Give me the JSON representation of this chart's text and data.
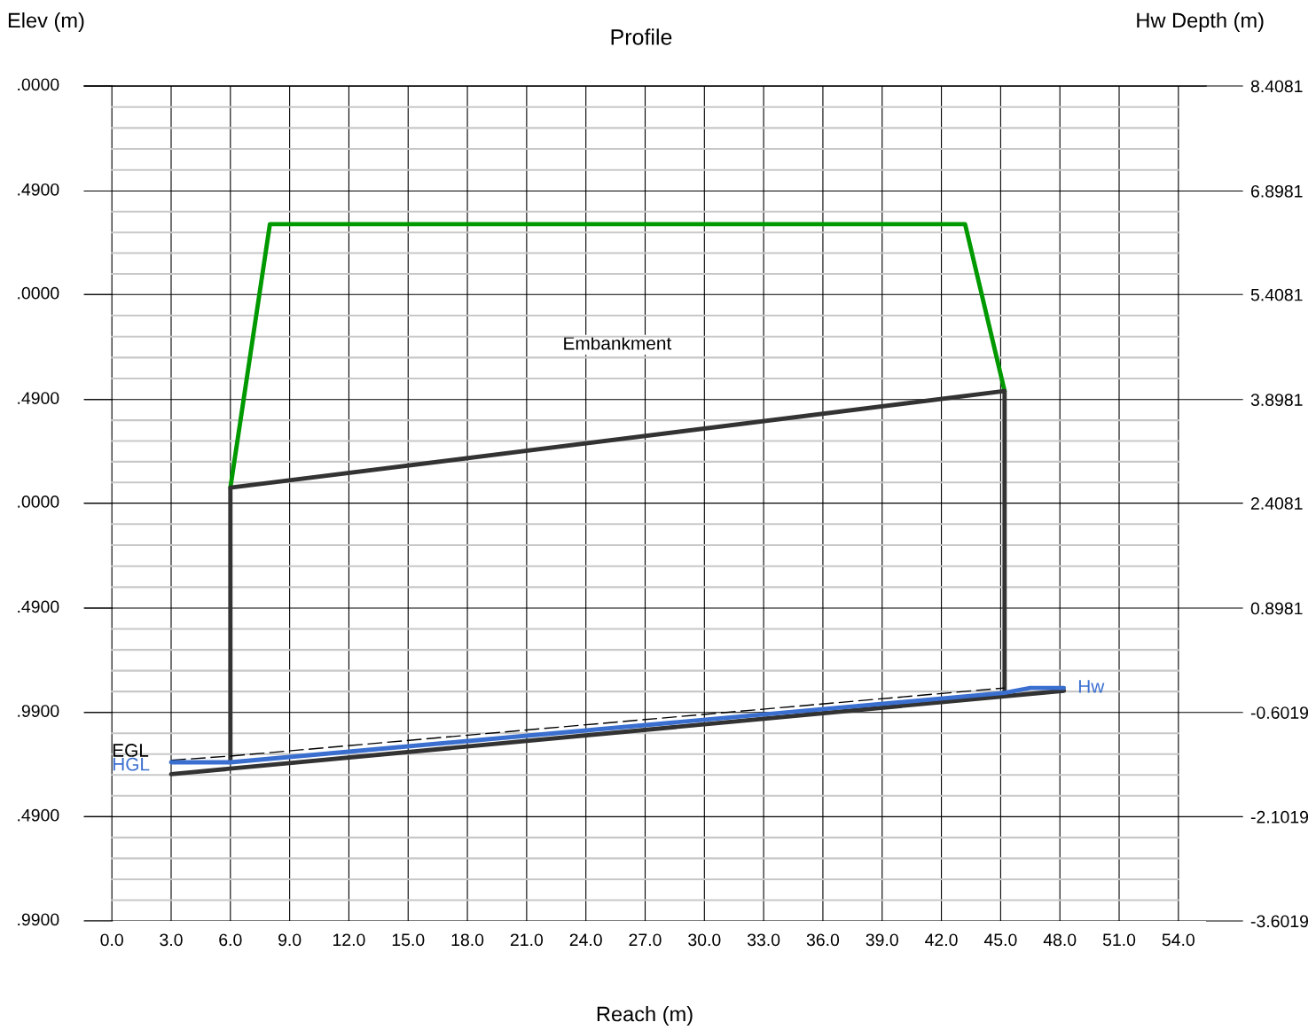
{
  "chart_data": {
    "type": "line",
    "title": "Profile",
    "xlabel": "Reach (m)",
    "ylabel": "Elev (m)",
    "y2label": "Hw Depth (m)",
    "xlim": [
      -1.4,
      55.4
    ],
    "xticks": [
      {
        "value": 0,
        "label": "0.0"
      },
      {
        "value": 3,
        "label": "3.0"
      },
      {
        "value": 6,
        "label": "6.0"
      },
      {
        "value": 9,
        "label": "9.0"
      },
      {
        "value": 12,
        "label": "12.0"
      },
      {
        "value": 15,
        "label": "15.0"
      },
      {
        "value": 18,
        "label": "18.0"
      },
      {
        "value": 21,
        "label": "21.0"
      },
      {
        "value": 24,
        "label": "24.0"
      },
      {
        "value": 27,
        "label": "27.0"
      },
      {
        "value": 30,
        "label": "30.0"
      },
      {
        "value": 33,
        "label": "33.0"
      },
      {
        "value": 36,
        "label": "36.0"
      },
      {
        "value": 39,
        "label": "39.0"
      },
      {
        "value": 42,
        "label": "42.0"
      },
      {
        "value": 45,
        "label": "45.0"
      },
      {
        "value": 48,
        "label": "48.0"
      },
      {
        "value": 51,
        "label": "51.0"
      },
      {
        "value": 54,
        "label": "54.0"
      }
    ],
    "y2lim": [
      -3.6019,
      8.4081
    ],
    "y2ticks": [
      8.4081,
      6.8981,
      5.4081,
      3.8981,
      2.4081,
      0.8981,
      -0.6019,
      -2.1019,
      -3.6019
    ],
    "grid": true,
    "line_style": "solid",
    "series": [
      {
        "axis": "y2",
        "color": "#009900",
        "x": [
          6,
          8,
          43.2,
          45.2
        ],
        "values": [
          2.63,
          6.42,
          6.42,
          4.02
        ]
      },
      {
        "axis": "y2",
        "color": "#333333",
        "x": [
          6,
          6,
          45.2,
          45.2
        ],
        "values": [
          -1.32,
          2.63,
          4.02,
          -0.29
        ]
      },
      {
        "axis": "y2",
        "color": "#333333",
        "x": [
          3,
          48.2
        ],
        "values": [
          -1.49,
          -0.29
        ]
      },
      {
        "axis": "y2",
        "name": "EGL",
        "color": "#000000",
        "line_style": "dashed",
        "x": [
          3,
          6,
          45.2
        ],
        "values": [
          -1.29,
          -1.23,
          -0.25
        ]
      },
      {
        "axis": "y2",
        "name": "HGL",
        "color": "#3a6fd0",
        "x": [
          3,
          6,
          45.2,
          46.5,
          48.2
        ],
        "values": [
          -1.32,
          -1.32,
          -0.32,
          -0.25,
          -0.25
        ]
      }
    ],
    "annotations": [
      ".0000",
      ".4900",
      ".0000",
      ".4900",
      ".0000",
      ".4900",
      ".9900",
      ".4900",
      ".9900",
      "Embankment",
      "Hw"
    ]
  }
}
